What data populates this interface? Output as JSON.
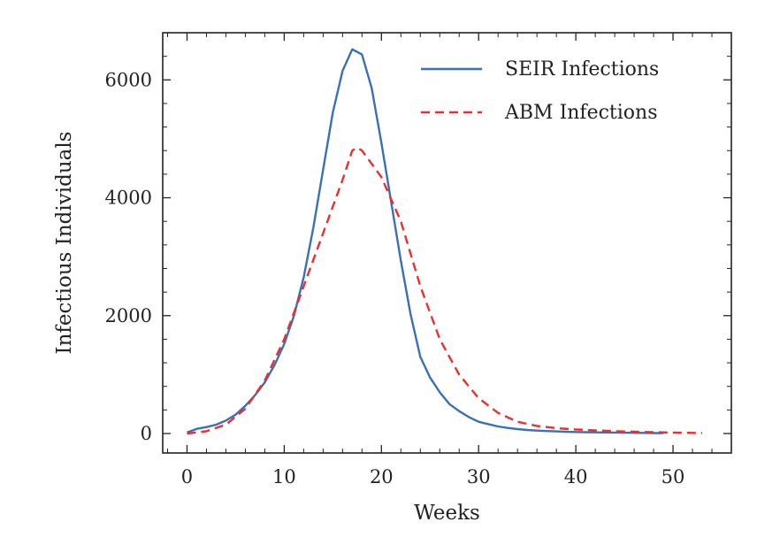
{
  "chart_data": {
    "type": "line",
    "title": "",
    "xlabel": "Weeks",
    "ylabel": "Infectious Individuals",
    "xlim": [
      -2.5,
      56
    ],
    "ylim": [
      -330,
      6800
    ],
    "xticks": [
      0,
      10,
      20,
      30,
      40,
      50
    ],
    "yticks": [
      0,
      2000,
      4000,
      6000
    ],
    "grid": false,
    "legend_position": "top-right",
    "series": [
      {
        "name": "SEIR Infections",
        "color": "#3b6fb6",
        "style": "solid",
        "x": [
          0,
          1,
          2,
          3,
          4,
          5,
          6,
          7,
          8,
          9,
          10,
          11,
          12,
          13,
          14,
          15,
          16,
          17,
          18,
          19,
          20,
          21,
          22,
          23,
          24,
          25,
          26,
          27,
          28,
          29,
          30,
          31,
          32,
          33,
          34,
          35,
          36,
          37,
          38,
          39,
          40,
          41,
          42,
          43,
          44,
          45,
          46,
          47,
          48,
          49
        ],
        "y": [
          20,
          80,
          110,
          150,
          220,
          320,
          470,
          650,
          870,
          1160,
          1520,
          2000,
          2650,
          3500,
          4480,
          5450,
          6150,
          6520,
          6430,
          5860,
          4930,
          3930,
          2930,
          2020,
          1300,
          950,
          700,
          500,
          380,
          280,
          200,
          160,
          120,
          95,
          75,
          60,
          50,
          42,
          36,
          30,
          25,
          22,
          20,
          18,
          16,
          14,
          12,
          10,
          8,
          6
        ]
      },
      {
        "name": "ABM Infections",
        "color": "#e8302f",
        "style": "dashed",
        "x": [
          0,
          2,
          4,
          6,
          8,
          10,
          12,
          14,
          16,
          17,
          17.5,
          18,
          20,
          22,
          24,
          26,
          28,
          30,
          32,
          34,
          36,
          38,
          40,
          42,
          44,
          46,
          48,
          50,
          52,
          53
        ],
        "y": [
          0,
          40,
          150,
          420,
          900,
          1600,
          2500,
          3400,
          4300,
          4800,
          4850,
          4800,
          4350,
          3600,
          2500,
          1600,
          1000,
          600,
          350,
          200,
          130,
          90,
          70,
          55,
          40,
          30,
          22,
          15,
          10,
          8
        ]
      }
    ]
  }
}
